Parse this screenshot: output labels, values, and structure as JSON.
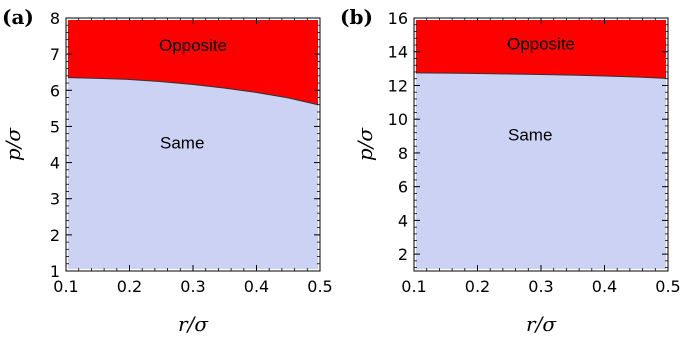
{
  "chart_data": [
    {
      "type": "area",
      "panel_label": "(a)",
      "xlabel": "r/σ",
      "ylabel": "p/σ",
      "xlim": [
        0.1,
        0.5
      ],
      "ylim": [
        1,
        8
      ],
      "xticks": [
        "0.1",
        "0.2",
        "0.3",
        "0.4",
        "0.5"
      ],
      "yticks": [
        "1",
        "2",
        "3",
        "4",
        "5",
        "6",
        "7",
        "8"
      ],
      "boundary": {
        "x": [
          0.1,
          0.15,
          0.2,
          0.25,
          0.3,
          0.35,
          0.4,
          0.45,
          0.5
        ],
        "y": [
          6.35,
          6.33,
          6.3,
          6.24,
          6.16,
          6.06,
          5.94,
          5.79,
          5.6
        ]
      },
      "regions": [
        {
          "name": "Opposite",
          "color": "#ff0000",
          "side": "above"
        },
        {
          "name": "Same",
          "color": "#ccd2f4",
          "side": "below"
        }
      ],
      "annotations": [
        {
          "text": "Opposite",
          "x": 0.3,
          "y": 7.25
        },
        {
          "text": "Same",
          "x": 0.283,
          "y": 4.55
        }
      ]
    },
    {
      "type": "area",
      "panel_label": "(b)",
      "xlabel": "r/σ",
      "ylabel": "p/σ",
      "xlim": [
        0.1,
        0.5
      ],
      "ylim": [
        1,
        16
      ],
      "xticks": [
        "0.1",
        "0.2",
        "0.3",
        "0.4",
        "0.5"
      ],
      "yticks": [
        "2",
        "4",
        "6",
        "8",
        "10",
        "12",
        "14",
        "16"
      ],
      "boundary": {
        "x": [
          0.1,
          0.15,
          0.2,
          0.25,
          0.3,
          0.35,
          0.4,
          0.45,
          0.5
        ],
        "y": [
          12.75,
          12.73,
          12.71,
          12.68,
          12.65,
          12.61,
          12.56,
          12.5,
          12.42
        ]
      },
      "regions": [
        {
          "name": "Opposite",
          "color": "#ff0000",
          "side": "above"
        },
        {
          "name": "Same",
          "color": "#ccd2f4",
          "side": "below"
        }
      ],
      "annotations": [
        {
          "text": "Opposite",
          "x": 0.3,
          "y": 14.5
        },
        {
          "text": "Same",
          "x": 0.283,
          "y": 9.1
        }
      ]
    }
  ]
}
